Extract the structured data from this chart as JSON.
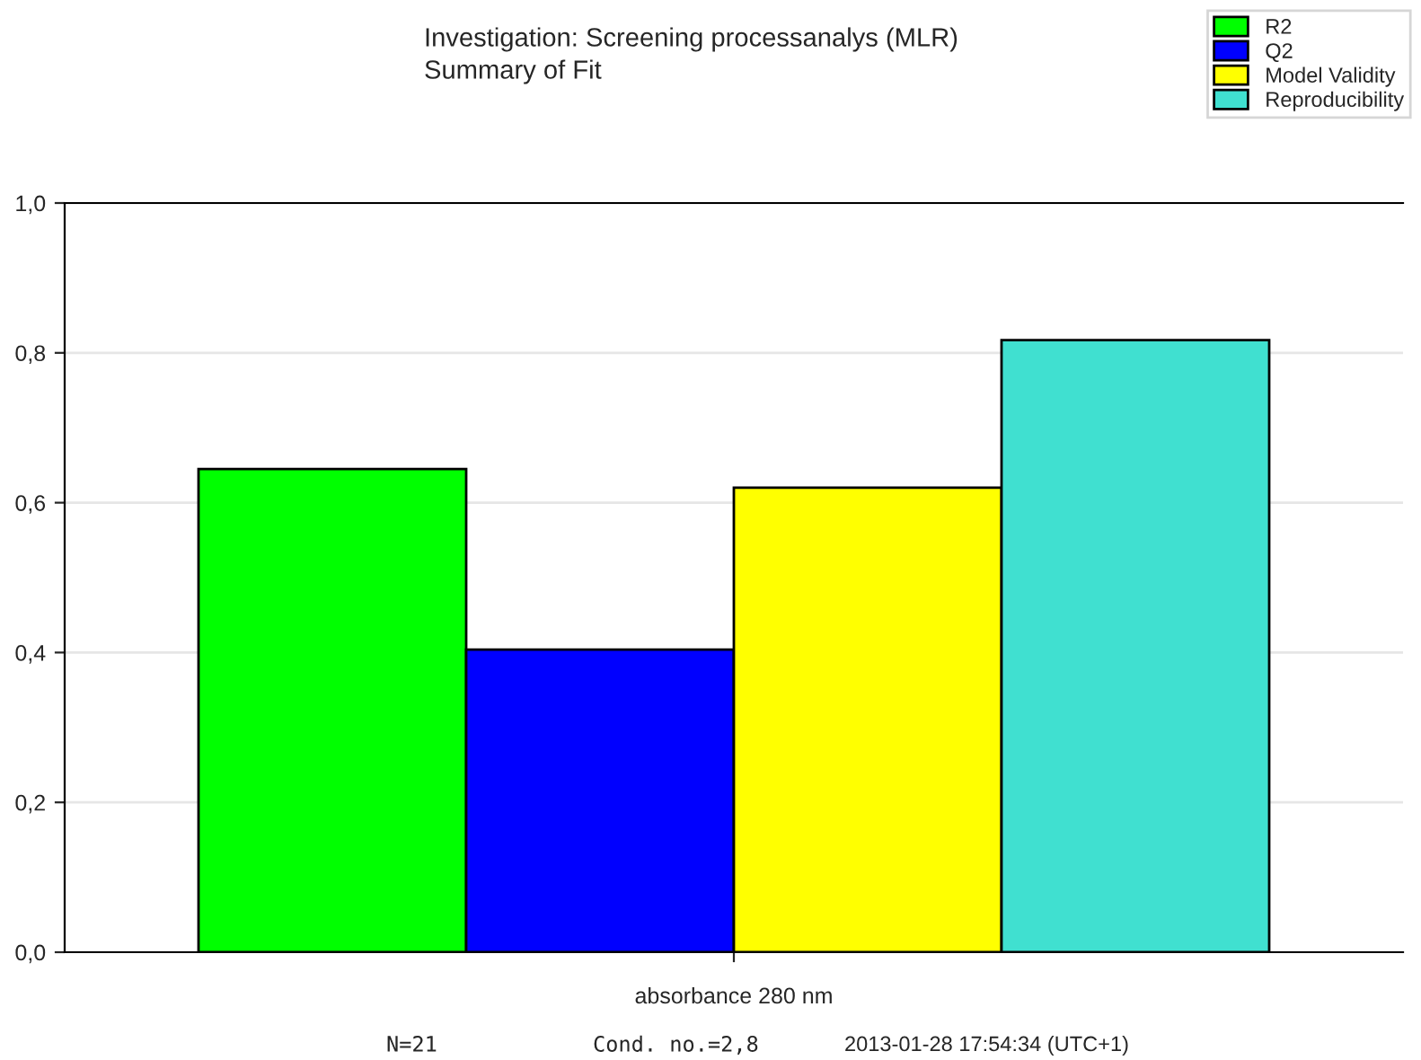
{
  "chart_data": {
    "type": "bar",
    "title": "Investigation: Screening processanalys (MLR)",
    "subtitle": "Summary of Fit",
    "categories": [
      "absorbance 280 nm"
    ],
    "series": [
      {
        "name": "R2",
        "color": "#00ff00",
        "values": [
          0.645
        ]
      },
      {
        "name": "Q2",
        "color": "#0000ff",
        "values": [
          0.404
        ]
      },
      {
        "name": "Model Validity",
        "color": "#ffff00",
        "values": [
          0.62
        ]
      },
      {
        "name": "Reproducibility",
        "color": "#40e0d0",
        "values": [
          0.817
        ]
      }
    ],
    "ylim": [
      0,
      1.0
    ],
    "yticks": [
      {
        "value": 0,
        "label": "0,0"
      },
      {
        "value": 0.2,
        "label": "0,2"
      },
      {
        "value": 0.4,
        "label": "0,4"
      },
      {
        "value": 0.6,
        "label": "0,6"
      },
      {
        "value": 0.8,
        "label": "0,8"
      },
      {
        "value": 1.0,
        "label": "1,0"
      }
    ],
    "grid": "y",
    "legend": "top right",
    "annotations": [
      "N=21",
      "Cond. no.=2,8",
      "2013-01-28 17:54:34 (UTC+1)"
    ]
  }
}
